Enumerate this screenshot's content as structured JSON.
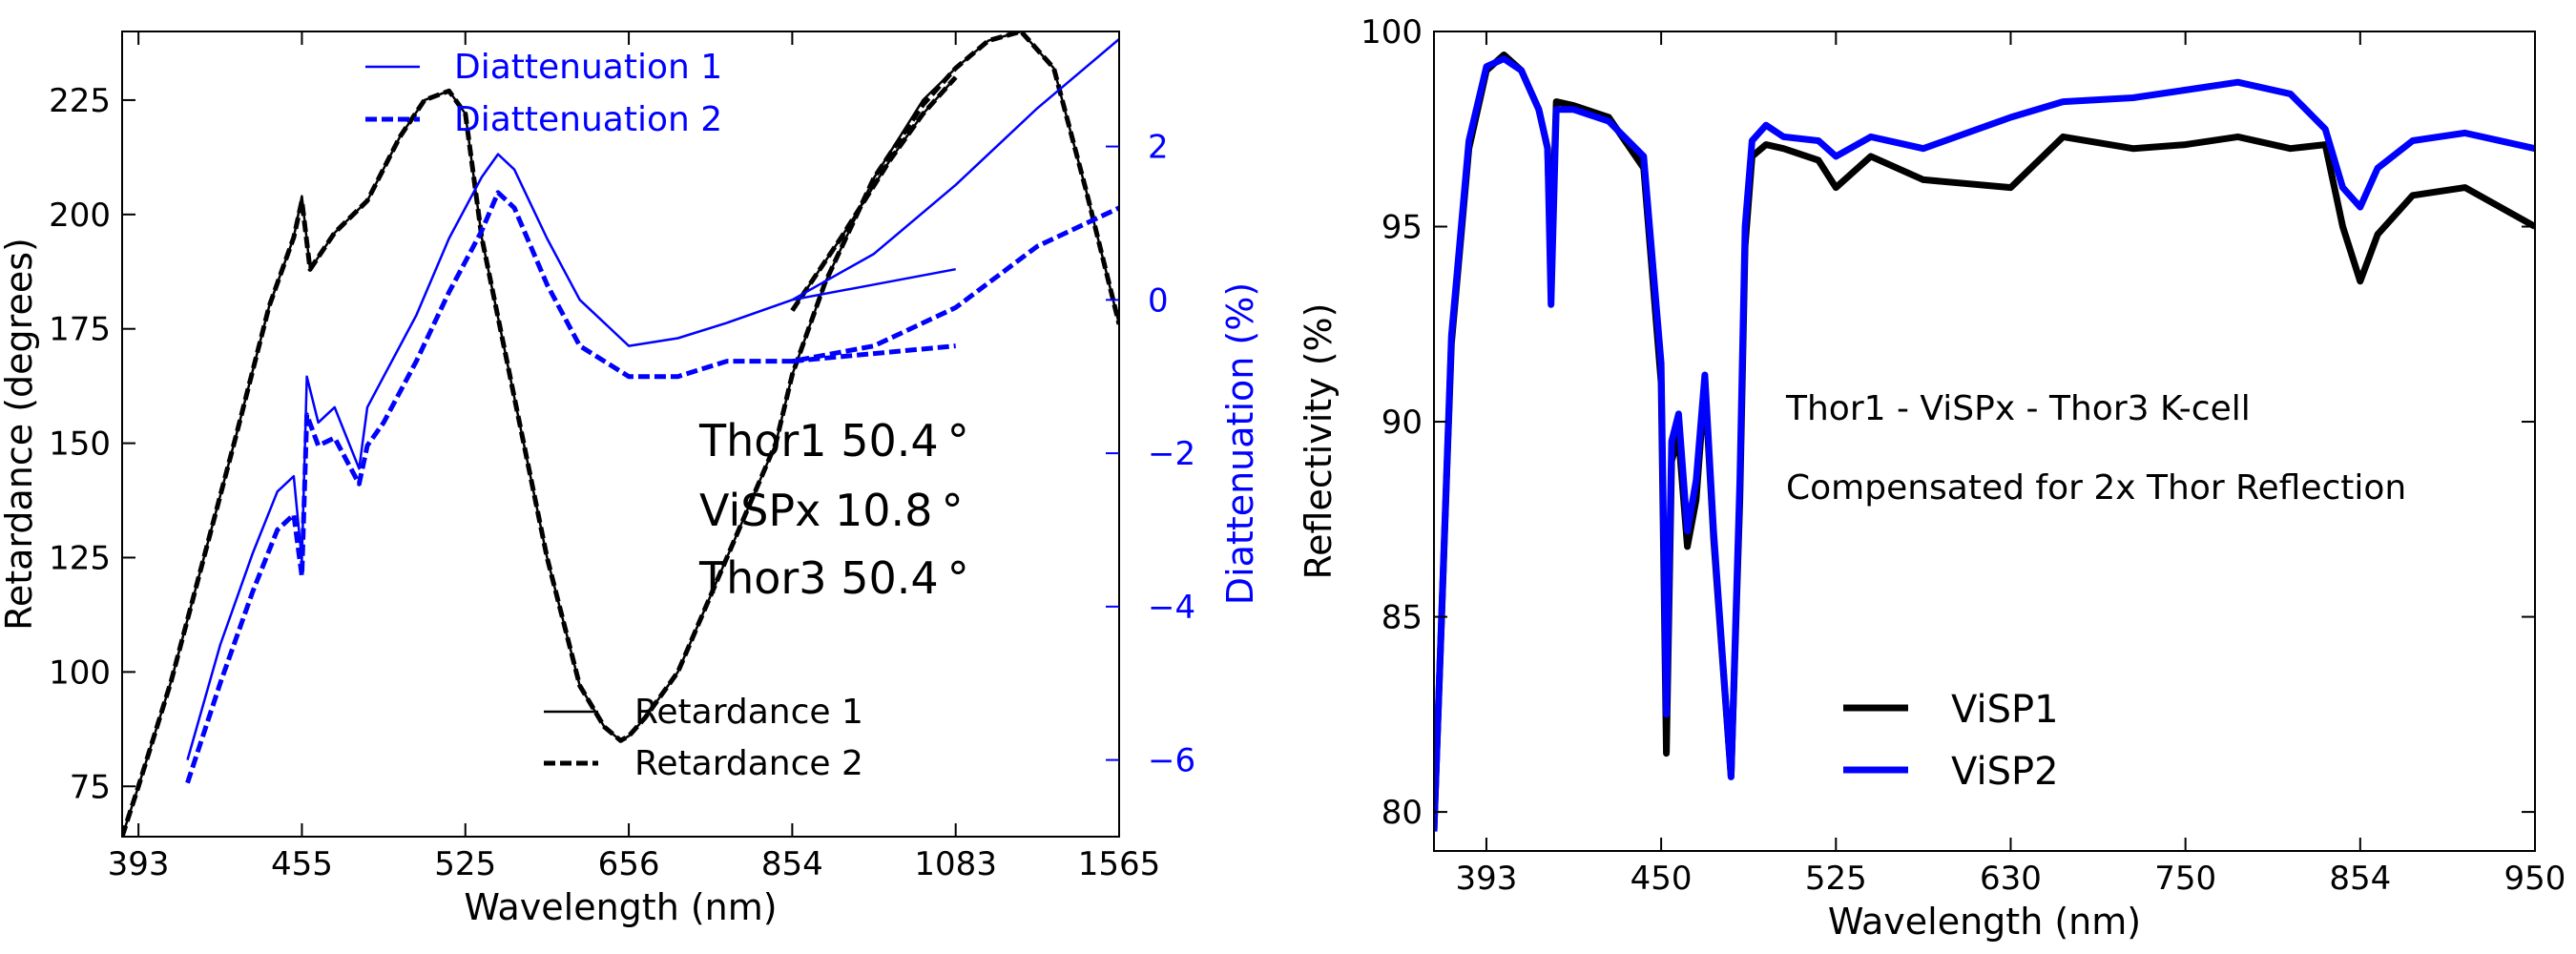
{
  "chart_data": [
    {
      "type": "line",
      "panel": "left",
      "xlabel": "Wavelength (nm)",
      "ylabel": "Retardance (degrees)",
      "y2label": "Diattenuation (%)",
      "x_tick_labels": [
        "393",
        "455",
        "525",
        "656",
        "854",
        "1083",
        "1565"
      ],
      "x_tick_index": [
        0,
        1,
        2,
        3,
        4,
        5,
        6
      ],
      "xlim_index": [
        -0.1,
        6.0
      ],
      "ylim": [
        64,
        240
      ],
      "yticks": [
        75,
        100,
        125,
        150,
        175,
        200,
        225
      ],
      "y2lim": [
        -7,
        3.5
      ],
      "y2ticks": [
        -6,
        -4,
        -2,
        0,
        2
      ],
      "y2tick_labels": [
        "−6",
        "−4",
        "−2",
        "0",
        "2"
      ],
      "annotations": [
        "Thor1  50.4 °",
        "ViSPx  10.8 °",
        "Thor3  50.4 °"
      ],
      "legend_retardance": [
        "Retardance 1",
        "Retardance 2"
      ],
      "legend_diattenuation": [
        "Diattenuation 1",
        "Diattenuation 2"
      ],
      "colors": {
        "retardance": "#000000",
        "diattenuation": "#0000ff"
      },
      "series": [
        {
          "name": "Retardance 1",
          "axis": "left",
          "style": "solid",
          "x": [
            -0.1,
            0.0,
            0.2,
            0.4,
            0.6,
            0.8,
            0.95,
            1.0,
            1.05,
            1.2,
            1.4,
            1.6,
            1.75,
            1.9,
            2.0,
            2.1,
            2.3,
            2.5,
            2.7,
            2.85,
            2.95,
            3.0,
            3.1,
            3.3,
            3.6,
            3.9,
            4.0,
            4.2,
            4.5,
            4.8,
            5.0,
            5.2,
            5.4,
            5.6,
            5.8,
            6.0
          ],
          "values": [
            64,
            75,
            98,
            125,
            152,
            180,
            195,
            204,
            188,
            196,
            203,
            217,
            225,
            227,
            222,
            195,
            160,
            125,
            97,
            88,
            85,
            86,
            90,
            100,
            125,
            150,
            165,
            185,
            208,
            225,
            232,
            238,
            240,
            232,
            205,
            176
          ]
        },
        {
          "name": "Retardance 2",
          "axis": "left",
          "style": "dashed",
          "x": [
            -0.1,
            0.0,
            0.2,
            0.4,
            0.6,
            0.8,
            0.95,
            1.0,
            1.05,
            1.2,
            1.4,
            1.6,
            1.75,
            1.9,
            2.0,
            2.1,
            2.3,
            2.5,
            2.7,
            2.85,
            2.95,
            3.0,
            3.1,
            3.3,
            3.6,
            3.9,
            4.0,
            4.2,
            4.5,
            4.8,
            5.0,
            5.2,
            5.4,
            5.6,
            5.8,
            6.0
          ],
          "values": [
            64,
            75,
            98,
            125,
            152,
            180,
            195,
            203,
            188,
            196,
            203,
            217,
            225,
            227,
            222,
            195,
            160,
            125,
            97,
            88,
            85,
            86,
            90,
            100,
            125,
            150,
            165,
            185,
            208,
            224,
            232,
            238,
            240,
            232,
            205,
            176
          ]
        },
        {
          "name": "Retardance 1 (second segment)",
          "axis": "left",
          "style": "solid",
          "x": [
            4.0,
            4.3,
            4.6,
            4.8,
            5.0
          ],
          "values": [
            179,
            195,
            212,
            222,
            230
          ]
        },
        {
          "name": "Retardance 2 (second segment)",
          "axis": "left",
          "style": "dashed",
          "x": [
            4.0,
            4.3,
            4.6,
            4.8,
            5.0
          ],
          "values": [
            179,
            195,
            212,
            222,
            230
          ]
        },
        {
          "name": "Diattenuation 1",
          "axis": "right",
          "style": "solid",
          "x": [
            0.3,
            0.5,
            0.7,
            0.85,
            0.95,
            1.0,
            1.03,
            1.1,
            1.2,
            1.35,
            1.4,
            1.5,
            1.7,
            1.9,
            2.1,
            2.2,
            2.3,
            2.5,
            2.7,
            3.0,
            3.3,
            3.6,
            4.0,
            4.5,
            5.0,
            5.5,
            6.0
          ],
          "values": [
            -6.0,
            -4.5,
            -3.3,
            -2.5,
            -2.3,
            -3.4,
            -1.0,
            -1.6,
            -1.4,
            -2.2,
            -1.4,
            -1.0,
            -0.2,
            0.8,
            1.6,
            1.9,
            1.7,
            0.8,
            0.0,
            -0.6,
            -0.5,
            -0.3,
            0.0,
            0.6,
            1.5,
            2.5,
            3.4
          ]
        },
        {
          "name": "Diattenuation 2",
          "axis": "right",
          "style": "dashed",
          "x": [
            0.3,
            0.5,
            0.7,
            0.85,
            0.95,
            1.0,
            1.03,
            1.1,
            1.2,
            1.35,
            1.4,
            1.5,
            1.7,
            1.9,
            2.1,
            2.2,
            2.3,
            2.5,
            2.7,
            3.0,
            3.3,
            3.6,
            4.0,
            4.5,
            5.0,
            5.5,
            6.0
          ],
          "values": [
            -6.3,
            -5.0,
            -3.8,
            -3.0,
            -2.8,
            -3.6,
            -1.5,
            -1.9,
            -1.8,
            -2.4,
            -1.9,
            -1.6,
            -0.8,
            0.1,
            0.9,
            1.4,
            1.2,
            0.2,
            -0.6,
            -1.0,
            -1.0,
            -0.8,
            -0.8,
            -0.6,
            -0.1,
            0.7,
            1.2
          ]
        },
        {
          "name": "Diattenuation 1 (second segment)",
          "axis": "right",
          "style": "solid",
          "x": [
            4.0,
            4.5,
            5.0
          ],
          "values": [
            0.0,
            0.2,
            0.4
          ]
        },
        {
          "name": "Diattenuation 2 (second segment)",
          "axis": "right",
          "style": "dashed",
          "x": [
            4.0,
            4.5,
            5.0
          ],
          "values": [
            -0.8,
            -0.7,
            -0.6
          ]
        }
      ]
    },
    {
      "type": "line",
      "panel": "right",
      "xlabel": "Wavelength (nm)",
      "ylabel": "Reflectivity (%)",
      "x_tick_labels": [
        "393",
        "450",
        "525",
        "630",
        "750",
        "854",
        "950"
      ],
      "x_tick_index": [
        0,
        1,
        2,
        3,
        4,
        5,
        6
      ],
      "xlim_index": [
        -0.3,
        6.0
      ],
      "ylim": [
        79,
        100
      ],
      "yticks": [
        80,
        85,
        90,
        95,
        100
      ],
      "annotations": [
        "Thor1 - ViSPx - Thor3   K-cell",
        "Compensated for 2x Thor Reflection"
      ],
      "legend": [
        "ViSP1",
        "ViSP2"
      ],
      "colors": {
        "ViSP1": "#000000",
        "ViSP2": "#0000ff"
      },
      "series": [
        {
          "name": "ViSP1",
          "x": [
            -0.3,
            -0.2,
            -0.1,
            0.0,
            0.1,
            0.2,
            0.3,
            0.35,
            0.37,
            0.4,
            0.5,
            0.7,
            0.9,
            1.0,
            1.03,
            1.06,
            1.1,
            1.15,
            1.2,
            1.25,
            1.3,
            1.4,
            1.45,
            1.48,
            1.52,
            1.6,
            1.7,
            1.9,
            2.0,
            2.2,
            2.5,
            3.0,
            3.3,
            3.7,
            4.0,
            4.3,
            4.6,
            4.8,
            4.9,
            5.0,
            5.1,
            5.3,
            5.6,
            6.0
          ],
          "values": [
            79.5,
            92.0,
            97.0,
            99.0,
            99.4,
            99.0,
            98.0,
            97.0,
            94.0,
            98.2,
            98.1,
            97.8,
            96.5,
            91.0,
            81.5,
            89.0,
            89.6,
            86.8,
            88.0,
            91.0,
            87.0,
            80.9,
            88.0,
            94.5,
            96.8,
            97.1,
            97.0,
            96.7,
            96.0,
            96.8,
            96.2,
            96.0,
            97.3,
            97.0,
            97.1,
            97.3,
            97.0,
            97.1,
            95.0,
            93.6,
            94.8,
            95.8,
            96.0,
            95.0
          ]
        },
        {
          "name": "ViSP2",
          "x": [
            -0.3,
            -0.2,
            -0.1,
            0.0,
            0.1,
            0.2,
            0.3,
            0.35,
            0.37,
            0.4,
            0.5,
            0.7,
            0.9,
            1.0,
            1.03,
            1.06,
            1.1,
            1.15,
            1.2,
            1.25,
            1.3,
            1.4,
            1.45,
            1.48,
            1.52,
            1.6,
            1.7,
            1.9,
            2.0,
            2.2,
            2.5,
            3.0,
            3.3,
            3.7,
            4.0,
            4.3,
            4.6,
            4.8,
            4.9,
            5.0,
            5.1,
            5.3,
            5.6,
            6.0
          ],
          "values": [
            79.5,
            92.2,
            97.2,
            99.1,
            99.3,
            99.0,
            98.0,
            97.0,
            93.0,
            98.0,
            98.0,
            97.7,
            96.8,
            91.5,
            82.5,
            89.5,
            90.2,
            87.2,
            88.5,
            91.2,
            87.2,
            80.9,
            88.5,
            95.0,
            97.2,
            97.6,
            97.3,
            97.2,
            96.8,
            97.3,
            97.0,
            97.8,
            98.2,
            98.3,
            98.5,
            98.7,
            98.4,
            97.5,
            96.0,
            95.5,
            96.5,
            97.2,
            97.4,
            97.0
          ]
        }
      ]
    }
  ]
}
